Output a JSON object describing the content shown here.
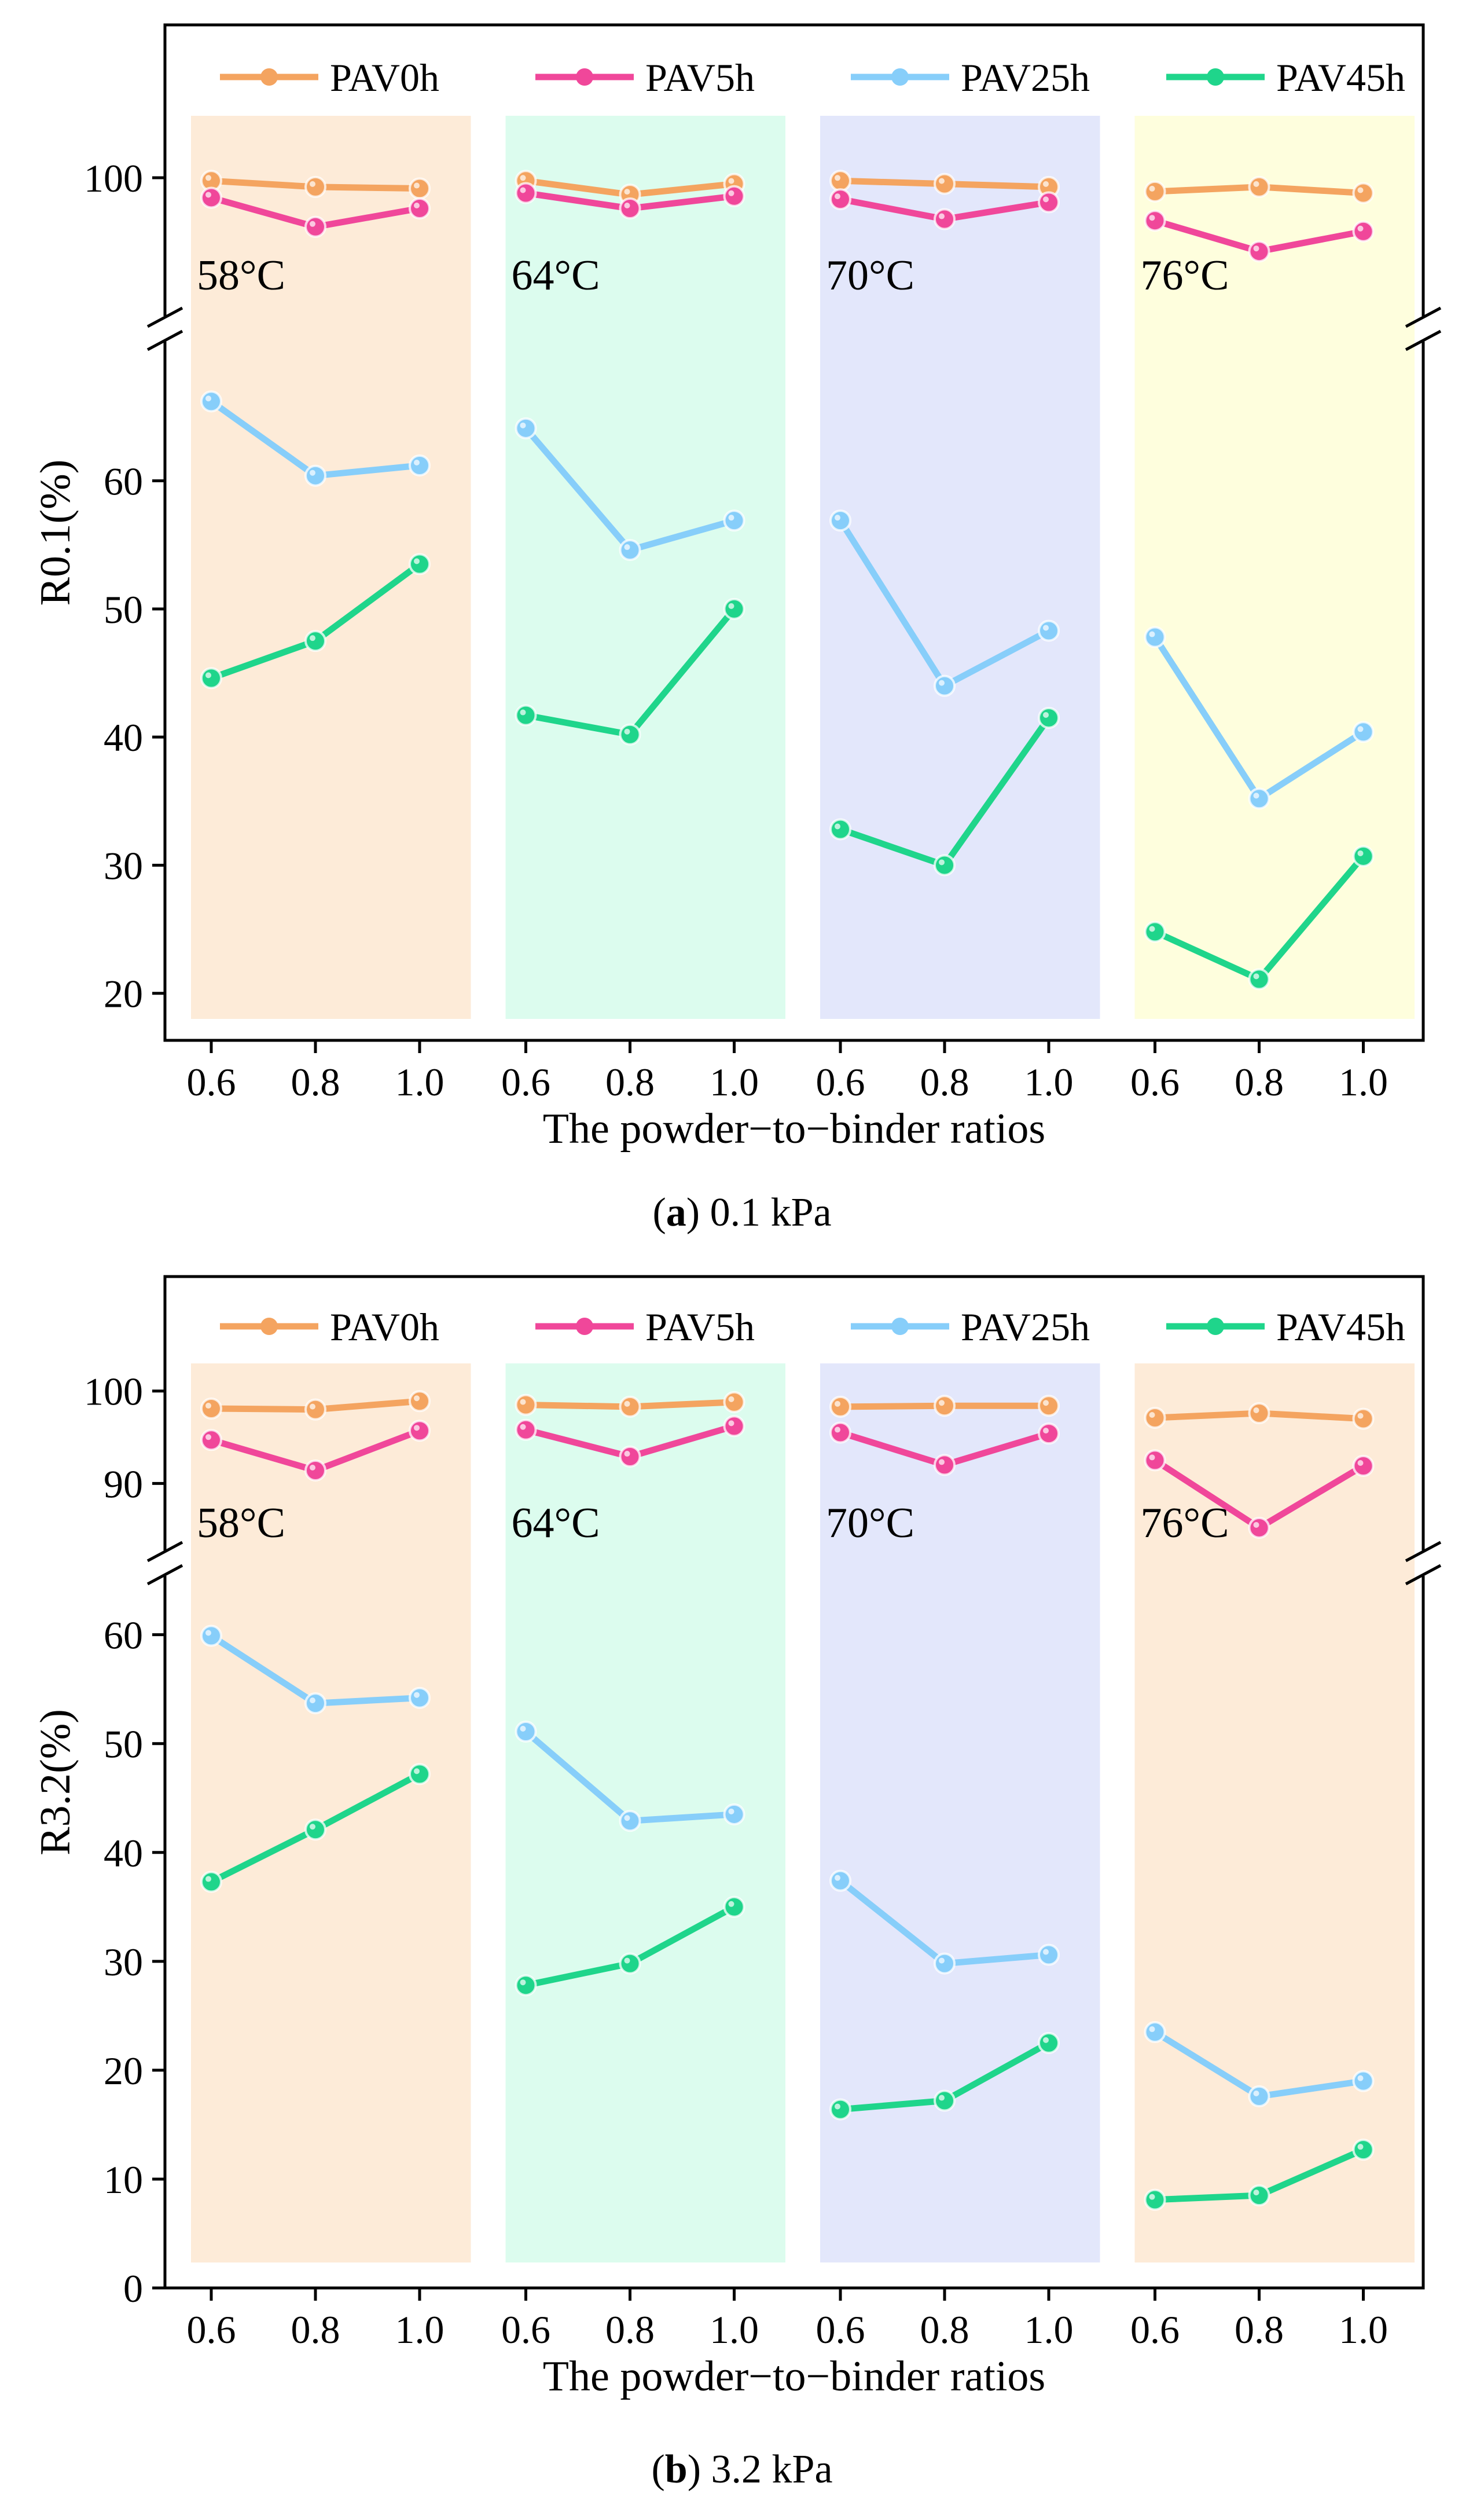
{
  "chart_data": [
    {
      "type": "line",
      "panel_label": "a",
      "panel_caption": "0.1 kPa",
      "xlabel": "The powder−to−binder ratios",
      "ylabel": "R0.1(%)",
      "x_tick_labels": [
        "0.6",
        "0.8",
        "1.0",
        "0.6",
        "0.8",
        "1.0",
        "0.6",
        "0.8",
        "1.0",
        "0.6",
        "0.8",
        "1.0"
      ],
      "groups": [
        "58°C",
        "64°C",
        "70°C",
        "76°C"
      ],
      "group_colors": [
        "#fdebd8",
        "#dcfcee",
        "#e3e7fb",
        "#fefedd"
      ],
      "y_axis_break": true,
      "ylim_lower": [
        18,
        72
      ],
      "ylim_upper": [
        90,
        108
      ],
      "yticks_lower": [
        20,
        30,
        40,
        50,
        60
      ],
      "yticks_upper": [
        100
      ],
      "legend_position": "top",
      "series": [
        {
          "name": "PAV0h",
          "color": "#f4a460",
          "values": [
            [
              99.8,
              99.4,
              99.3
            ],
            [
              99.8,
              98.9,
              99.6
            ],
            [
              99.8,
              99.6,
              99.4
            ],
            [
              99.1,
              99.4,
              99.0
            ]
          ]
        },
        {
          "name": "PAV5h",
          "color": "#f0479a",
          "values": [
            [
              98.7,
              96.8,
              98.0
            ],
            [
              99.0,
              98.0,
              98.8
            ],
            [
              98.6,
              97.3,
              98.4
            ],
            [
              97.2,
              95.2,
              96.5
            ]
          ]
        },
        {
          "name": "PAV25h",
          "color": "#87cefa",
          "values": [
            [
              66.2,
              60.4,
              61.2
            ],
            [
              64.1,
              54.6,
              56.9
            ],
            [
              56.9,
              44.0,
              48.3
            ],
            [
              47.8,
              35.2,
              40.4
            ]
          ]
        },
        {
          "name": "PAV45h",
          "color": "#1fd58b",
          "values": [
            [
              44.6,
              47.5,
              53.5
            ],
            [
              41.7,
              40.2,
              50.0
            ],
            [
              32.8,
              30.0,
              41.5
            ],
            [
              24.8,
              21.1,
              30.7
            ]
          ]
        }
      ]
    },
    {
      "type": "line",
      "panel_label": "b",
      "panel_caption": "3.2 kPa",
      "xlabel": "The powder−to−binder ratios",
      "ylabel": "R3.2(%)",
      "x_tick_labels": [
        "0.6",
        "0.8",
        "1.0",
        "0.6",
        "0.8",
        "1.0",
        "0.6",
        "0.8",
        "1.0",
        "0.6",
        "0.8",
        "1.0"
      ],
      "groups": [
        "58°C",
        "64°C",
        "70°C",
        "76°C"
      ],
      "group_colors": [
        "#fdebd8",
        "#dcfcee",
        "#e3e7fb",
        "#fdebd8"
      ],
      "y_axis_break": true,
      "ylim_lower": [
        0,
        67
      ],
      "ylim_upper": [
        81,
        108
      ],
      "yticks_lower": [
        0,
        10,
        20,
        30,
        40,
        50,
        60
      ],
      "yticks_upper": [
        90,
        100
      ],
      "legend_position": "top",
      "series": [
        {
          "name": "PAV0h",
          "color": "#f4a460",
          "values": [
            [
              98.1,
              98.0,
              98.9
            ],
            [
              98.5,
              98.3,
              98.8
            ],
            [
              98.3,
              98.4,
              98.4
            ],
            [
              97.1,
              97.6,
              97.0
            ]
          ]
        },
        {
          "name": "PAV5h",
          "color": "#f0479a",
          "values": [
            [
              94.7,
              91.4,
              95.7
            ],
            [
              95.8,
              92.9,
              96.2
            ],
            [
              95.5,
              92.0,
              95.4
            ],
            [
              92.5,
              85.2,
              91.9
            ]
          ]
        },
        {
          "name": "PAV25h",
          "color": "#87cefa",
          "values": [
            [
              59.9,
              53.7,
              54.2
            ],
            [
              51.1,
              42.9,
              43.5
            ],
            [
              37.4,
              29.8,
              30.6
            ],
            [
              23.5,
              17.6,
              19.0
            ]
          ]
        },
        {
          "name": "PAV45h",
          "color": "#1fd58b",
          "values": [
            [
              37.3,
              42.1,
              47.2
            ],
            [
              27.8,
              29.8,
              35.0
            ],
            [
              16.4,
              17.2,
              22.5
            ],
            [
              8.1,
              8.5,
              12.7
            ]
          ]
        }
      ]
    }
  ]
}
